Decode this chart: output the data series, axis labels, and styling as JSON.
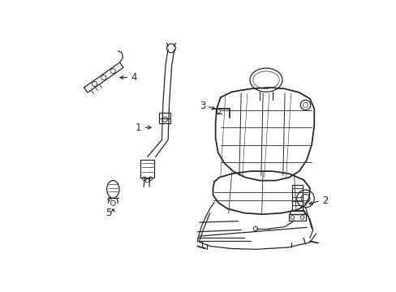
{
  "bg_color": "#ffffff",
  "line_color": "#2a2a2a",
  "figsize": [
    4.89,
    3.6
  ],
  "dpi": 100,
  "label_fontsize": 8.5
}
